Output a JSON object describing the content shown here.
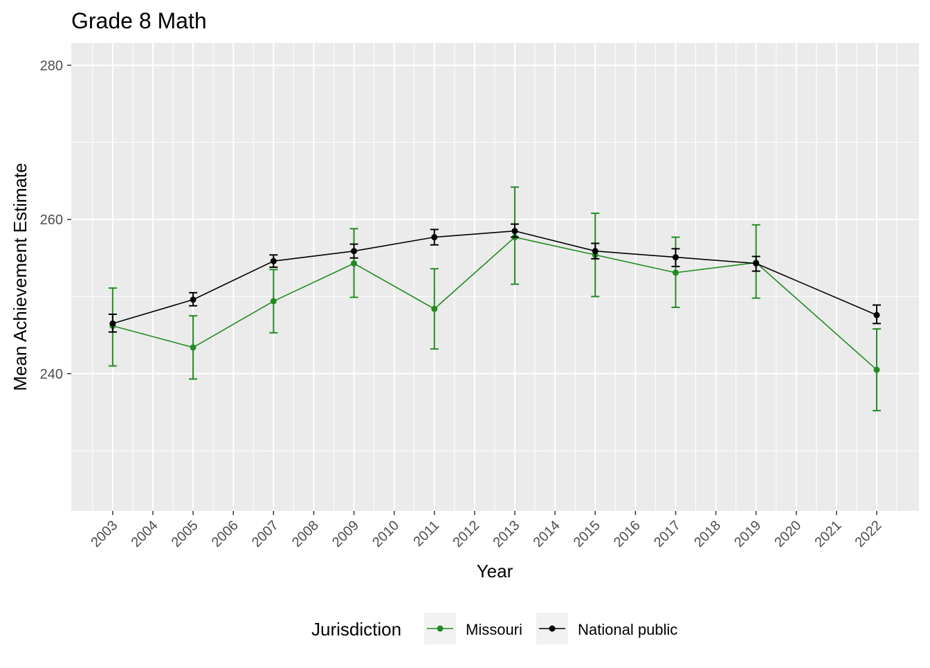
{
  "chart_data": {
    "type": "line",
    "title": "Grade 8 Math",
    "xlabel": "Year",
    "ylabel": "Mean Achievement Estimate",
    "x_ticks": [
      2003,
      2004,
      2005,
      2006,
      2007,
      2008,
      2009,
      2010,
      2011,
      2012,
      2013,
      2014,
      2015,
      2016,
      2017,
      2018,
      2019,
      2020,
      2021,
      2022
    ],
    "y_ticks": [
      240,
      260,
      280
    ],
    "xlim": [
      2001.97,
      2023.05
    ],
    "ylim": [
      222.2,
      282.9
    ],
    "grid": true,
    "legend": {
      "title": "Jurisdiction",
      "placement": "bottom"
    },
    "series": [
      {
        "name": "Missouri",
        "color": "#228B22",
        "x": [
          2003,
          2005,
          2007,
          2009,
          2011,
          2013,
          2015,
          2017,
          2019,
          2022
        ],
        "values": [
          246.2,
          243.4,
          249.4,
          254.3,
          248.4,
          257.7,
          255.4,
          253.1,
          254.4,
          240.5
        ],
        "upper": [
          251.1,
          247.5,
          253.5,
          258.8,
          253.6,
          264.2,
          260.8,
          257.7,
          259.3,
          245.8
        ],
        "lower": [
          241.0,
          239.3,
          245.3,
          249.9,
          243.2,
          251.6,
          250.0,
          248.6,
          249.8,
          235.2
        ]
      },
      {
        "name": "National public",
        "color": "#000000",
        "x": [
          2003,
          2005,
          2007,
          2009,
          2011,
          2013,
          2015,
          2017,
          2019,
          2022
        ],
        "values": [
          246.5,
          249.6,
          254.6,
          255.9,
          257.7,
          258.5,
          255.9,
          255.1,
          254.3,
          247.6
        ],
        "upper": [
          247.7,
          250.5,
          255.4,
          256.8,
          258.7,
          259.4,
          256.9,
          256.2,
          255.2,
          248.9
        ],
        "lower": [
          245.4,
          248.8,
          253.8,
          255.0,
          256.7,
          257.7,
          254.9,
          253.9,
          253.3,
          246.5
        ]
      }
    ]
  }
}
